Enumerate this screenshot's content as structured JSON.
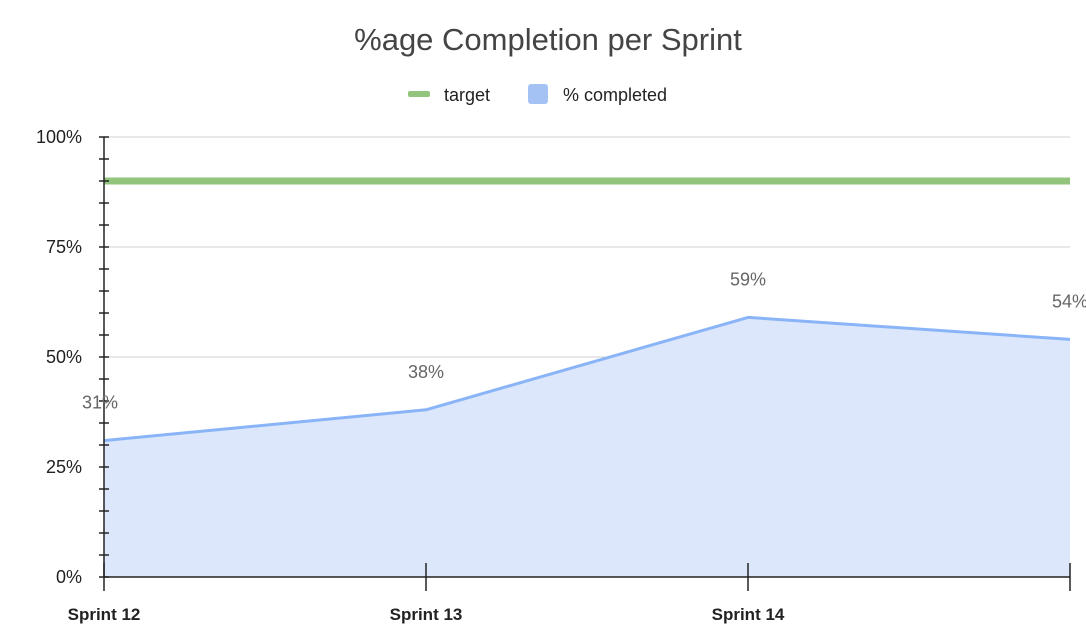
{
  "chart_data": {
    "type": "area",
    "title": "%age Completion per Sprint",
    "categories": [
      "Sprint 12",
      "Sprint 13",
      "Sprint 14",
      ""
    ],
    "series": [
      {
        "name": "target",
        "type": "line",
        "values": [
          90,
          90,
          90,
          90
        ],
        "color": "#93c47d"
      },
      {
        "name": "% completed",
        "type": "area",
        "values": [
          31,
          38,
          59,
          54
        ],
        "labels": [
          "31%",
          "38%",
          "59%",
          "54%"
        ],
        "color": "#8ab4f8",
        "fill": "#dde7fb"
      }
    ],
    "yticks": [
      "0%",
      "25%",
      "50%",
      "75%",
      "100%"
    ],
    "ylim": [
      0,
      100
    ],
    "legend": "top-center",
    "grid": true
  }
}
